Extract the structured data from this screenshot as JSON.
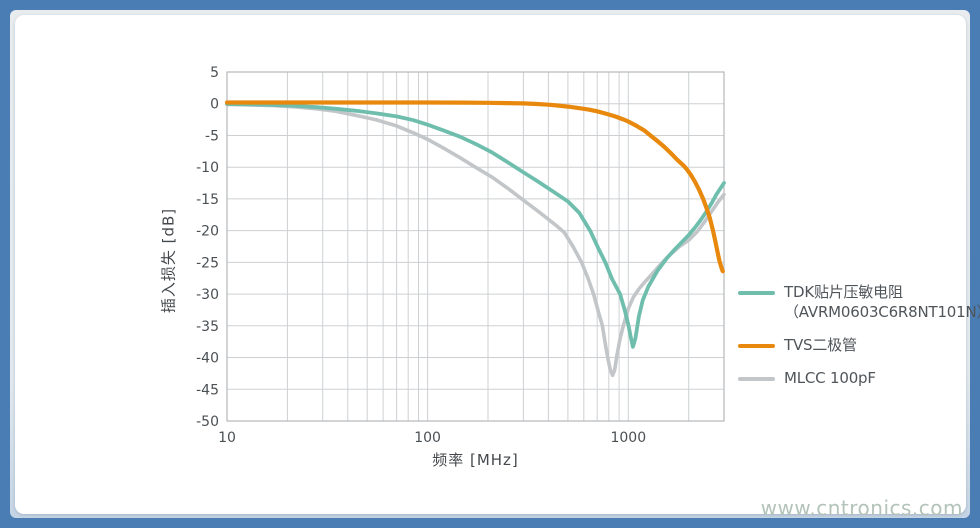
{
  "frame": {
    "border_color": "#4A7DB3",
    "mat_color": "#E6EAEE",
    "card_color": "#FFFFFF"
  },
  "watermark": {
    "text": "www.cntronics.com",
    "color": "#B3C3B9"
  },
  "legend": {
    "items": [
      {
        "lines": [
          "TDK贴片压敏电阻",
          "（AVRM0603C6R8NT101N）"
        ],
        "color": "#6FBEAD"
      },
      {
        "lines": [
          "TVS二极管"
        ],
        "color": "#E8890E"
      },
      {
        "lines": [
          "MLCC 100pF"
        ],
        "color": "#C2C6C9"
      }
    ]
  },
  "chart_data": {
    "type": "line",
    "title": "",
    "xlabel": "频率 [MHz]",
    "ylabel": "插入损失 [dB]",
    "x_scale": "log",
    "x_range": [
      10,
      3000
    ],
    "y_range": [
      -50,
      5
    ],
    "x_ticks": [
      10,
      100,
      1000
    ],
    "y_ticks": [
      5,
      0,
      -5,
      -10,
      -15,
      -20,
      -25,
      -30,
      -35,
      -40,
      -45,
      -50
    ],
    "grid": "on",
    "grid_color": "#CDD0D3",
    "axis_color": "#B3B7BA",
    "tick_color": "#4B5054",
    "legend_position": "right-outside",
    "series": [
      {
        "name": "MLCC 100pF",
        "color": "#C2C6C9",
        "points": [
          [
            10,
            -0.1
          ],
          [
            13,
            -0.18
          ],
          [
            17,
            -0.3
          ],
          [
            22,
            -0.5
          ],
          [
            28,
            -0.8
          ],
          [
            35,
            -1.2
          ],
          [
            45,
            -1.9
          ],
          [
            55,
            -2.5
          ],
          [
            70,
            -3.5
          ],
          [
            85,
            -4.6
          ],
          [
            100,
            -5.6
          ],
          [
            120,
            -7
          ],
          [
            145,
            -8.5
          ],
          [
            175,
            -10.1
          ],
          [
            210,
            -11.6
          ],
          [
            250,
            -13.3
          ],
          [
            300,
            -15.2
          ],
          [
            360,
            -17.1
          ],
          [
            430,
            -19
          ],
          [
            480,
            -20.3
          ],
          [
            530,
            -22.5
          ],
          [
            585,
            -25
          ],
          [
            630,
            -27.5
          ],
          [
            672,
            -30
          ],
          [
            710,
            -32.8
          ],
          [
            743,
            -35
          ],
          [
            770,
            -38
          ],
          [
            795,
            -40.5
          ],
          [
            815,
            -42
          ],
          [
            835,
            -42.8
          ],
          [
            855,
            -42
          ],
          [
            880,
            -39.5
          ],
          [
            910,
            -37
          ],
          [
            945,
            -35
          ],
          [
            1000,
            -32.3
          ],
          [
            1060,
            -30.5
          ],
          [
            1130,
            -29.2
          ],
          [
            1200,
            -28.2
          ],
          [
            1300,
            -27
          ],
          [
            1450,
            -25.3
          ],
          [
            1600,
            -23.9
          ],
          [
            1800,
            -22.5
          ],
          [
            2000,
            -21.5
          ],
          [
            2200,
            -20.2
          ],
          [
            2400,
            -18.6
          ],
          [
            2600,
            -17
          ],
          [
            2800,
            -15.5
          ],
          [
            3000,
            -14.3
          ]
        ]
      },
      {
        "name": "TDK贴片压敏电阻（AVRM0603C6R8NT101N）",
        "color": "#6FBEAD",
        "points": [
          [
            10,
            -0.05
          ],
          [
            13,
            -0.1
          ],
          [
            17,
            -0.2
          ],
          [
            22,
            -0.35
          ],
          [
            28,
            -0.55
          ],
          [
            35,
            -0.8
          ],
          [
            45,
            -1.15
          ],
          [
            55,
            -1.5
          ],
          [
            70,
            -2
          ],
          [
            85,
            -2.6
          ],
          [
            100,
            -3.3
          ],
          [
            120,
            -4.2
          ],
          [
            145,
            -5.2
          ],
          [
            175,
            -6.4
          ],
          [
            210,
            -7.7
          ],
          [
            250,
            -9.2
          ],
          [
            300,
            -10.8
          ],
          [
            360,
            -12.4
          ],
          [
            430,
            -14
          ],
          [
            500,
            -15.4
          ],
          [
            570,
            -17.2
          ],
          [
            645,
            -20
          ],
          [
            710,
            -22.8
          ],
          [
            768,
            -25
          ],
          [
            830,
            -27.6
          ],
          [
            910,
            -30
          ],
          [
            960,
            -32.5
          ],
          [
            1000,
            -34.8
          ],
          [
            1030,
            -36.8
          ],
          [
            1055,
            -38.3
          ],
          [
            1085,
            -37
          ],
          [
            1130,
            -33.5
          ],
          [
            1180,
            -31
          ],
          [
            1260,
            -28.8
          ],
          [
            1400,
            -26.3
          ],
          [
            1550,
            -24.4
          ],
          [
            1700,
            -23
          ],
          [
            1850,
            -21.8
          ],
          [
            2000,
            -20.7
          ],
          [
            2150,
            -19.5
          ],
          [
            2300,
            -18.3
          ],
          [
            2450,
            -17
          ],
          [
            2600,
            -15.7
          ],
          [
            2750,
            -14.3
          ],
          [
            2900,
            -13.2
          ],
          [
            3000,
            -12.5
          ]
        ]
      },
      {
        "name": "TVS二极管",
        "color": "#E8890E",
        "points": [
          [
            10,
            0.2
          ],
          [
            50,
            0.2
          ],
          [
            100,
            0.2
          ],
          [
            150,
            0.18
          ],
          [
            200,
            0.15
          ],
          [
            250,
            0.1
          ],
          [
            300,
            0.05
          ],
          [
            350,
            -0.05
          ],
          [
            400,
            -0.15
          ],
          [
            450,
            -0.3
          ],
          [
            500,
            -0.45
          ],
          [
            560,
            -0.65
          ],
          [
            630,
            -0.9
          ],
          [
            700,
            -1.2
          ],
          [
            780,
            -1.6
          ],
          [
            860,
            -2
          ],
          [
            950,
            -2.5
          ],
          [
            1000,
            -2.8
          ],
          [
            1100,
            -3.5
          ],
          [
            1200,
            -4.2
          ],
          [
            1290,
            -5
          ],
          [
            1400,
            -5.9
          ],
          [
            1500,
            -6.7
          ],
          [
            1620,
            -7.7
          ],
          [
            1750,
            -8.8
          ],
          [
            1880,
            -9.7
          ],
          [
            1955,
            -10.3
          ],
          [
            2050,
            -11.2
          ],
          [
            2150,
            -12.3
          ],
          [
            2250,
            -13.5
          ],
          [
            2360,
            -15
          ],
          [
            2450,
            -16.4
          ],
          [
            2550,
            -18
          ],
          [
            2645,
            -20
          ],
          [
            2720,
            -21.8
          ],
          [
            2790,
            -23.5
          ],
          [
            2850,
            -24.8
          ],
          [
            2900,
            -25.6
          ],
          [
            2940,
            -26.2
          ],
          [
            2960,
            -26.4
          ]
        ]
      }
    ]
  }
}
